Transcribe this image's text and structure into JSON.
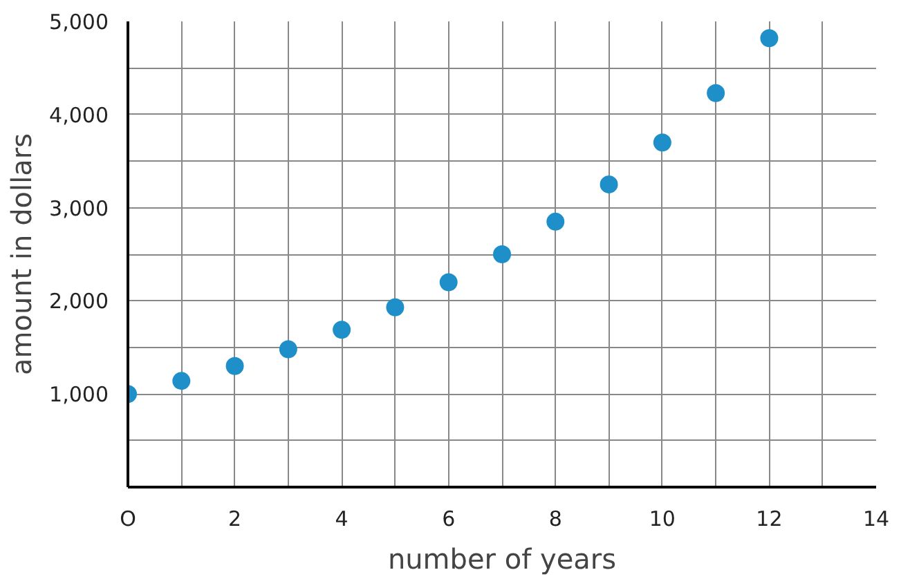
{
  "chart_data": {
    "type": "scatter",
    "xlabel": "number of years",
    "ylabel": "amount in dollars",
    "x": [
      0,
      1,
      2,
      3,
      4,
      5,
      6,
      7,
      8,
      9,
      10,
      11,
      12
    ],
    "values": [
      1000,
      1140,
      1300,
      1480,
      1690,
      1930,
      2200,
      2500,
      2850,
      3250,
      3700,
      4230,
      4820
    ],
    "color": "#1f8fc9",
    "marker": "circle",
    "grid": true,
    "xlim": [
      0,
      14
    ],
    "ylim": [
      0,
      5000
    ],
    "xticks": [
      {
        "value": 0,
        "label": "O"
      },
      {
        "value": 1,
        "label": null
      },
      2,
      {
        "value": 3,
        "label": null
      },
      4,
      {
        "value": 5,
        "label": null
      },
      6,
      {
        "value": 7,
        "label": null
      },
      8,
      {
        "value": 9,
        "label": null
      },
      10,
      {
        "value": 11,
        "label": null
      },
      12,
      {
        "value": 13,
        "label": null
      },
      14
    ],
    "yticks": [
      {
        "value": 0,
        "label": null
      },
      {
        "value": 500,
        "label": null
      },
      {
        "value": 1000,
        "label": "1,000"
      },
      {
        "value": 1500,
        "label": null
      },
      {
        "value": 2000,
        "label": "2,000"
      },
      {
        "value": 2500,
        "label": null
      },
      {
        "value": 3000,
        "label": "3,000"
      },
      {
        "value": 3500,
        "label": null
      },
      {
        "value": 4000,
        "label": "4,000"
      },
      {
        "value": 4500,
        "label": null
      },
      {
        "value": 5000,
        "label": "5,000"
      }
    ]
  }
}
